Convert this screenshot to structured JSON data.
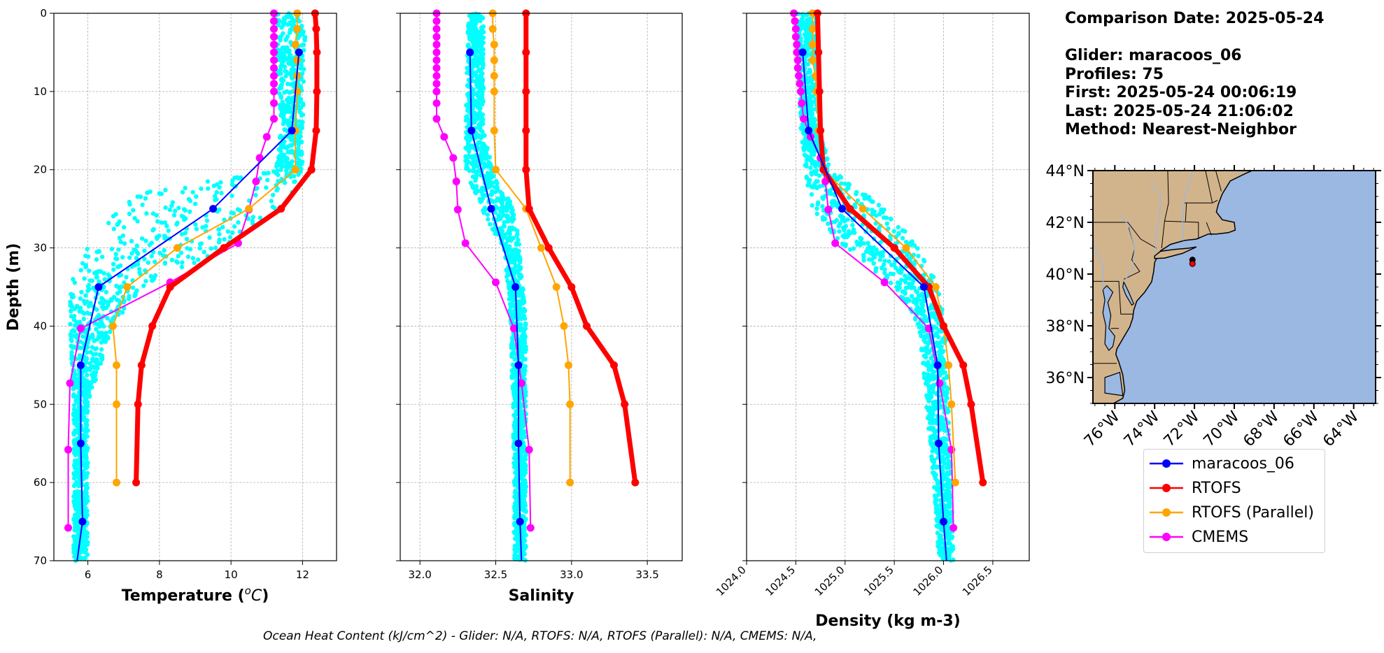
{
  "info": {
    "comparison_date": "Comparison Date: 2025-05-24",
    "glider": "Glider: maracoos_06",
    "profiles": "Profiles: 75",
    "first": "First: 2025-05-24 00:06:19",
    "last": "Last: 2025-05-24 21:06:02",
    "method": "Method: Nearest-Neighbor"
  },
  "footer": "Ocean Heat Content (kJ/cm^2) - Glider: N/A,  RTOFS: N/A,  RTOFS (Parallel): N/A,  CMEMS: N/A,",
  "legend": [
    {
      "label": "maracoos_06",
      "color": "#0000ff"
    },
    {
      "label": "RTOFS",
      "color": "#ff0000"
    },
    {
      "label": "RTOFS (Parallel)",
      "color": "#ffa500"
    },
    {
      "label": "CMEMS",
      "color": "#ff00ff"
    }
  ],
  "colors": {
    "raw": "#00ffff",
    "glider": "#0000ff",
    "rtofs": "#ff0000",
    "parallel": "#ffa500",
    "cmems": "#ff00ff",
    "land": "#d2b48c",
    "ocean": "#9ab8e2",
    "marker": "#ff0000"
  },
  "chart_data": [
    {
      "type": "line",
      "xlabel": "Temperature (°C)",
      "ylabel": "Depth (m)",
      "xlim": [
        5.05,
        12.95
      ],
      "ylim": [
        70,
        0
      ],
      "xticks": [
        6,
        8,
        10,
        12
      ],
      "yticks": [
        0,
        10,
        20,
        30,
        40,
        50,
        60,
        70
      ],
      "grid": true,
      "raw_cloud": [
        [
          0,
          11.2,
          12.1
        ],
        [
          15,
          11.4,
          12.0
        ],
        [
          20,
          11.2,
          12.0
        ],
        [
          23,
          7.5,
          11.8
        ],
        [
          26,
          6.5,
          11.0
        ],
        [
          30,
          5.9,
          10.0
        ],
        [
          35,
          5.5,
          7.5
        ],
        [
          40,
          5.5,
          6.7
        ],
        [
          50,
          5.6,
          6.0
        ],
        [
          70,
          5.6,
          6.0
        ]
      ],
      "series": [
        {
          "name": "maracoos_06",
          "depth": [
            5,
            15,
            25,
            35,
            45,
            55,
            65,
            70
          ],
          "values": [
            11.9,
            11.7,
            9.5,
            6.3,
            5.8,
            5.8,
            5.85,
            5.7
          ],
          "markers": [
            true,
            true,
            true,
            true,
            true,
            true,
            true,
            false
          ]
        },
        {
          "name": "RTOFS",
          "depth": [
            0,
            2,
            5,
            10,
            15,
            20,
            25,
            30,
            35,
            40,
            45,
            50,
            60
          ],
          "values": [
            12.35,
            12.38,
            12.4,
            12.4,
            12.38,
            12.25,
            11.4,
            9.8,
            8.3,
            7.8,
            7.5,
            7.4,
            7.35
          ]
        },
        {
          "name": "RTOFS (Parallel)",
          "depth": [
            0,
            2,
            4,
            6,
            8,
            10,
            15,
            20,
            25,
            30,
            35,
            40,
            45,
            50,
            60
          ],
          "values": [
            11.85,
            11.85,
            11.8,
            11.85,
            11.85,
            11.85,
            11.8,
            11.8,
            10.5,
            8.5,
            7.1,
            6.7,
            6.8,
            6.8,
            6.8
          ]
        },
        {
          "name": "CMEMS",
          "depth": [
            0,
            1,
            2,
            3,
            4,
            5,
            6,
            7,
            8,
            9,
            10,
            11.5,
            13.5,
            15.8,
            18.5,
            21.5,
            25.1,
            29.4,
            34.4,
            40.3,
            47.3,
            55.8,
            65.8
          ],
          "values": [
            11.2,
            11.2,
            11.2,
            11.2,
            11.2,
            11.2,
            11.2,
            11.2,
            11.2,
            11.2,
            11.2,
            11.2,
            11.2,
            11.0,
            10.8,
            10.7,
            10.5,
            10.2,
            8.3,
            5.8,
            5.5,
            5.45,
            5.45
          ]
        }
      ]
    },
    {
      "type": "line",
      "xlabel": "Salinity",
      "xlim": [
        31.87,
        33.73
      ],
      "ylim": [
        70,
        0
      ],
      "xticks": [
        32.0,
        32.5,
        33.0,
        33.5
      ],
      "grid": true,
      "raw_cloud": [
        [
          0,
          32.32,
          32.42
        ],
        [
          15,
          32.3,
          32.42
        ],
        [
          20,
          32.3,
          32.48
        ],
        [
          25,
          32.4,
          32.62
        ],
        [
          30,
          32.55,
          32.66
        ],
        [
          40,
          32.6,
          32.7
        ],
        [
          60,
          32.62,
          32.7
        ],
        [
          70,
          32.62,
          32.7
        ]
      ],
      "series": [
        {
          "name": "maracoos_06",
          "depth": [
            5,
            15,
            25,
            35,
            45,
            55,
            65,
            70
          ],
          "values": [
            32.33,
            32.34,
            32.47,
            32.63,
            32.65,
            32.65,
            32.66,
            32.67
          ],
          "markers": [
            true,
            true,
            true,
            true,
            true,
            true,
            true,
            false
          ]
        },
        {
          "name": "RTOFS",
          "depth": [
            0,
            5,
            10,
            15,
            20,
            25,
            30,
            35,
            40,
            45,
            50,
            60
          ],
          "values": [
            32.7,
            32.7,
            32.7,
            32.7,
            32.7,
            32.72,
            32.85,
            33.0,
            33.1,
            33.28,
            33.35,
            33.42
          ]
        },
        {
          "name": "RTOFS (Parallel)",
          "depth": [
            0,
            2,
            4,
            6,
            8,
            10,
            15,
            20,
            25,
            30,
            35,
            40,
            45,
            50,
            60
          ],
          "values": [
            32.48,
            32.48,
            32.49,
            32.49,
            32.49,
            32.49,
            32.49,
            32.5,
            32.7,
            32.8,
            32.9,
            32.95,
            32.98,
            32.99,
            32.99
          ]
        },
        {
          "name": "CMEMS",
          "depth": [
            0,
            1,
            2,
            3,
            4,
            5,
            6,
            7,
            8,
            9,
            10,
            11.5,
            13.5,
            15.8,
            18.5,
            21.5,
            25.1,
            29.4,
            34.4,
            40.3,
            47.3,
            55.8,
            65.8
          ],
          "values": [
            32.11,
            32.11,
            32.11,
            32.11,
            32.11,
            32.11,
            32.11,
            32.11,
            32.11,
            32.11,
            32.11,
            32.11,
            32.11,
            32.16,
            32.22,
            32.24,
            32.25,
            32.3,
            32.5,
            32.62,
            32.67,
            32.72,
            32.73
          ]
        }
      ]
    },
    {
      "type": "line",
      "xlabel": "Density (kg m-3)",
      "xlim": [
        1024.0,
        1026.87
      ],
      "ylim": [
        70,
        0
      ],
      "xticks": [
        1024.0,
        1024.5,
        1025.0,
        1025.5,
        1026.0,
        1026.5
      ],
      "grid": true,
      "raw_cloud": [
        [
          0,
          1024.5,
          1024.72
        ],
        [
          15,
          1024.55,
          1024.75
        ],
        [
          20,
          1024.6,
          1024.85
        ],
        [
          23,
          1024.6,
          1025.2
        ],
        [
          26,
          1024.7,
          1025.5
        ],
        [
          30,
          1025.0,
          1025.75
        ],
        [
          35,
          1025.5,
          1025.95
        ],
        [
          40,
          1025.75,
          1026.02
        ],
        [
          60,
          1025.9,
          1026.08
        ],
        [
          70,
          1025.95,
          1026.1
        ]
      ],
      "series": [
        {
          "name": "maracoos_06",
          "depth": [
            5,
            15,
            25,
            35,
            45,
            55,
            65,
            70
          ],
          "values": [
            1024.57,
            1024.63,
            1024.97,
            1025.8,
            1025.94,
            1025.95,
            1026.0,
            1026.03
          ],
          "markers": [
            true,
            true,
            true,
            true,
            true,
            true,
            true,
            false
          ]
        },
        {
          "name": "RTOFS",
          "depth": [
            0,
            5,
            10,
            15,
            20,
            25,
            30,
            35,
            40,
            45,
            50,
            60
          ],
          "values": [
            1024.72,
            1024.73,
            1024.74,
            1024.75,
            1024.78,
            1025.05,
            1025.5,
            1025.85,
            1026.0,
            1026.2,
            1026.28,
            1026.4
          ]
        },
        {
          "name": "RTOFS (Parallel)",
          "depth": [
            0,
            2,
            4,
            6,
            8,
            10,
            15,
            20,
            25,
            30,
            35,
            40,
            45,
            50,
            60
          ],
          "values": [
            1024.67,
            1024.67,
            1024.67,
            1024.67,
            1024.7,
            1024.71,
            1024.73,
            1024.78,
            1025.18,
            1025.62,
            1025.92,
            1026.0,
            1026.05,
            1026.08,
            1026.12
          ]
        },
        {
          "name": "CMEMS",
          "depth": [
            0,
            1,
            2,
            3,
            4,
            5,
            6,
            7,
            8,
            9,
            10,
            11.5,
            13.5,
            15.8,
            18.5,
            21.5,
            25.1,
            29.4,
            34.4,
            40.3,
            47.3,
            55.8,
            65.8
          ],
          "values": [
            1024.48,
            1024.49,
            1024.5,
            1024.5,
            1024.51,
            1024.51,
            1024.52,
            1024.52,
            1024.53,
            1024.54,
            1024.55,
            1024.56,
            1024.58,
            1024.65,
            1024.75,
            1024.8,
            1024.83,
            1024.9,
            1025.4,
            1025.85,
            1025.96,
            1026.08,
            1026.1
          ]
        }
      ]
    }
  ],
  "map": {
    "lat_ticks": [
      "44°N",
      "42°N",
      "40°N",
      "38°N",
      "36°N"
    ],
    "lon_ticks": [
      "76°W",
      "74°W",
      "72°W",
      "70°W",
      "68°W",
      "66°W",
      "64°W"
    ],
    "lat_range": [
      35,
      44
    ],
    "lon_range": [
      -77.1,
      -62.9
    ],
    "glider_position": {
      "lat": 40.55,
      "lon": -72.1
    },
    "model_position": {
      "lat": 40.4,
      "lon": -72.1
    }
  }
}
